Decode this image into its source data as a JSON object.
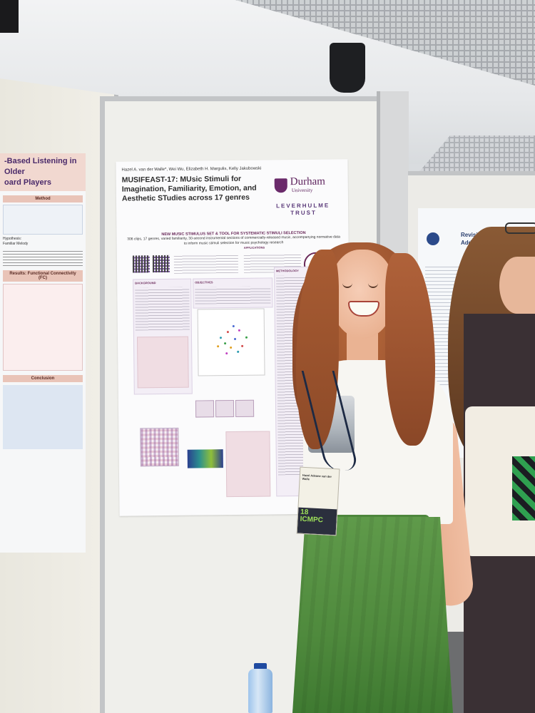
{
  "left_poster": {
    "title": "-Based Listening in Older\noard Players",
    "section_method": "Method",
    "section_results": "Results: Functional Connectivity (FC)",
    "section_conclusion": "Conclusion",
    "hypothesis_label": "Hypothesis:",
    "melody_label": "Familiar Melody"
  },
  "poster": {
    "authors": "Hazel A. van der Walle*, Wei Wu, Elizabeth H. Margulis, Kelly Jakubowski",
    "title": "MUSIFEAST-17: MUsic Stimuli for Imagination, Familiarity, Emotion, and Aesthetic STudies across 17 genres",
    "logo_university": "Durham",
    "logo_university_sub": "University",
    "logo_trust_line1": "LEVERHULME",
    "logo_trust_line2": "TRUST",
    "banner_title": "NEW MUSIC STIMULUS SET & TOOL FOR SYSTEMATIC STIMULI SELECTION",
    "banner_subtitle": "306 clips, 17 genres, varied familiarity, 30-second instrumental sections of commercially-released music, accompanying normative data to inform music stimuli selection for music psychology research",
    "section_background": "BACKGROUND",
    "section_objectives": "OBJECTIVES",
    "section_methodology": "METHODOLOGY",
    "section_applications": "APPLICATIONS"
  },
  "far_poster": {
    "title": "Revisitin\nAdditive Ne"
  },
  "badge": {
    "name_line": "Hazel Adeane van der Walle",
    "conference": "ICMPC",
    "edition": "18"
  },
  "colors": {
    "durham_purple": "#5b1f5b",
    "skirt_green": "#4f8a3d",
    "board": "#efefeb"
  }
}
